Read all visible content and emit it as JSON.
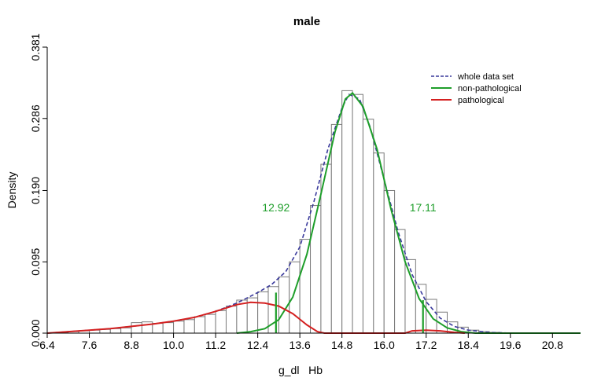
{
  "chart_data": {
    "type": "histogram",
    "title": "male",
    "xlabel": "g_dl   Hb",
    "ylabel": "Density",
    "xlim": [
      6.4,
      21.6
    ],
    "ylim": [
      0,
      0.381
    ],
    "x_ticks": [
      "6.4",
      "7.6",
      "8.8",
      "10.0",
      "11.2",
      "12.4",
      "13.6",
      "14.8",
      "16.0",
      "17.2",
      "18.4",
      "19.6",
      "20.8"
    ],
    "y_ticks": [
      "0.000",
      "0.095",
      "0.190",
      "0.286",
      "0.381"
    ],
    "bin_width": 0.3,
    "bins": [
      {
        "x0": 6.4,
        "density": 0.0
      },
      {
        "x0": 6.7,
        "density": 0.001
      },
      {
        "x0": 7.0,
        "density": 0.002
      },
      {
        "x0": 7.3,
        "density": 0.003
      },
      {
        "x0": 7.6,
        "density": 0.004
      },
      {
        "x0": 7.9,
        "density": 0.005
      },
      {
        "x0": 8.2,
        "density": 0.006
      },
      {
        "x0": 8.5,
        "density": 0.007
      },
      {
        "x0": 8.8,
        "density": 0.014
      },
      {
        "x0": 9.1,
        "density": 0.015
      },
      {
        "x0": 9.4,
        "density": 0.013
      },
      {
        "x0": 9.7,
        "density": 0.014
      },
      {
        "x0": 10.0,
        "density": 0.016
      },
      {
        "x0": 10.3,
        "density": 0.018
      },
      {
        "x0": 10.6,
        "density": 0.022
      },
      {
        "x0": 10.9,
        "density": 0.025
      },
      {
        "x0": 11.2,
        "density": 0.03
      },
      {
        "x0": 11.5,
        "density": 0.036
      },
      {
        "x0": 11.8,
        "density": 0.044
      },
      {
        "x0": 12.1,
        "density": 0.047
      },
      {
        "x0": 12.4,
        "density": 0.055
      },
      {
        "x0": 12.7,
        "density": 0.062
      },
      {
        "x0": 13.0,
        "density": 0.075
      },
      {
        "x0": 13.3,
        "density": 0.095
      },
      {
        "x0": 13.6,
        "density": 0.125
      },
      {
        "x0": 13.9,
        "density": 0.17
      },
      {
        "x0": 14.2,
        "density": 0.225
      },
      {
        "x0": 14.5,
        "density": 0.278
      },
      {
        "x0": 14.8,
        "density": 0.323
      },
      {
        "x0": 15.1,
        "density": 0.318
      },
      {
        "x0": 15.4,
        "density": 0.285
      },
      {
        "x0": 15.7,
        "density": 0.24
      },
      {
        "x0": 16.0,
        "density": 0.19
      },
      {
        "x0": 16.3,
        "density": 0.138
      },
      {
        "x0": 16.6,
        "density": 0.098
      },
      {
        "x0": 16.9,
        "density": 0.065
      },
      {
        "x0": 17.2,
        "density": 0.045
      },
      {
        "x0": 17.5,
        "density": 0.028
      },
      {
        "x0": 17.8,
        "density": 0.015
      },
      {
        "x0": 18.1,
        "density": 0.008
      },
      {
        "x0": 18.4,
        "density": 0.004
      },
      {
        "x0": 18.7,
        "density": 0.002
      },
      {
        "x0": 19.0,
        "density": 0.001
      }
    ],
    "series": [
      {
        "name": "whole data set",
        "color": "#3a3a9c",
        "style": "dashed",
        "points": [
          [
            6.4,
            0.0
          ],
          [
            7.0,
            0.002
          ],
          [
            7.6,
            0.004
          ],
          [
            8.2,
            0.006
          ],
          [
            8.8,
            0.009
          ],
          [
            9.4,
            0.012
          ],
          [
            10.0,
            0.016
          ],
          [
            10.6,
            0.021
          ],
          [
            11.2,
            0.029
          ],
          [
            11.8,
            0.04
          ],
          [
            12.4,
            0.054
          ],
          [
            12.8,
            0.065
          ],
          [
            13.2,
            0.082
          ],
          [
            13.6,
            0.115
          ],
          [
            14.0,
            0.175
          ],
          [
            14.4,
            0.245
          ],
          [
            14.8,
            0.3
          ],
          [
            15.0,
            0.318
          ],
          [
            15.3,
            0.312
          ],
          [
            15.6,
            0.275
          ],
          [
            16.0,
            0.205
          ],
          [
            16.4,
            0.135
          ],
          [
            16.8,
            0.078
          ],
          [
            17.2,
            0.042
          ],
          [
            17.6,
            0.02
          ],
          [
            18.0,
            0.009
          ],
          [
            18.4,
            0.004
          ],
          [
            19.0,
            0.001
          ],
          [
            19.6,
            0.0
          ],
          [
            21.6,
            0.0
          ]
        ]
      },
      {
        "name": "non-pathological",
        "color": "#1e9e2a",
        "style": "solid",
        "points": [
          [
            11.8,
            0.0
          ],
          [
            12.2,
            0.002
          ],
          [
            12.6,
            0.006
          ],
          [
            13.0,
            0.018
          ],
          [
            13.4,
            0.048
          ],
          [
            13.8,
            0.105
          ],
          [
            14.2,
            0.185
          ],
          [
            14.6,
            0.268
          ],
          [
            14.9,
            0.312
          ],
          [
            15.1,
            0.32
          ],
          [
            15.4,
            0.302
          ],
          [
            15.8,
            0.245
          ],
          [
            16.2,
            0.165
          ],
          [
            16.6,
            0.095
          ],
          [
            17.0,
            0.046
          ],
          [
            17.4,
            0.019
          ],
          [
            17.8,
            0.007
          ],
          [
            18.2,
            0.002
          ],
          [
            18.6,
            0.0
          ],
          [
            21.6,
            0.0
          ]
        ]
      },
      {
        "name": "pathological",
        "color": "#d42020",
        "style": "solid",
        "points": [
          [
            6.4,
            0.0
          ],
          [
            7.0,
            0.002
          ],
          [
            7.6,
            0.004
          ],
          [
            8.2,
            0.006
          ],
          [
            8.8,
            0.009
          ],
          [
            9.4,
            0.012
          ],
          [
            10.0,
            0.016
          ],
          [
            10.6,
            0.021
          ],
          [
            11.2,
            0.029
          ],
          [
            11.8,
            0.038
          ],
          [
            12.2,
            0.041
          ],
          [
            12.6,
            0.04
          ],
          [
            13.0,
            0.036
          ],
          [
            13.4,
            0.026
          ],
          [
            13.8,
            0.011
          ],
          [
            14.1,
            0.002
          ],
          [
            14.3,
            0.0
          ],
          [
            16.6,
            0.0
          ],
          [
            16.8,
            0.003
          ],
          [
            17.2,
            0.004
          ],
          [
            17.6,
            0.003
          ],
          [
            18.0,
            0.001
          ],
          [
            18.3,
            0.0
          ]
        ]
      }
    ],
    "cutoff_lines": [
      {
        "x": 12.92,
        "y_top": 0.054,
        "color": "#1e9e2a"
      },
      {
        "x": 17.11,
        "y_top": 0.044,
        "color": "#1e9e2a"
      }
    ],
    "annotations": [
      {
        "text": "12.92",
        "x": 12.92,
        "y": 0.162,
        "color": "#1e9e2a"
      },
      {
        "text": "17.11",
        "x": 17.11,
        "y": 0.162,
        "color": "#1e9e2a"
      }
    ],
    "legend": {
      "placement": "top-right",
      "entries": [
        {
          "label": "whole data set",
          "color": "#3a3a9c",
          "style": "dashed"
        },
        {
          "label": "non-pathological",
          "color": "#1e9e2a",
          "style": "solid"
        },
        {
          "label": "pathological",
          "color": "#d42020",
          "style": "solid"
        }
      ]
    },
    "grid": false
  }
}
